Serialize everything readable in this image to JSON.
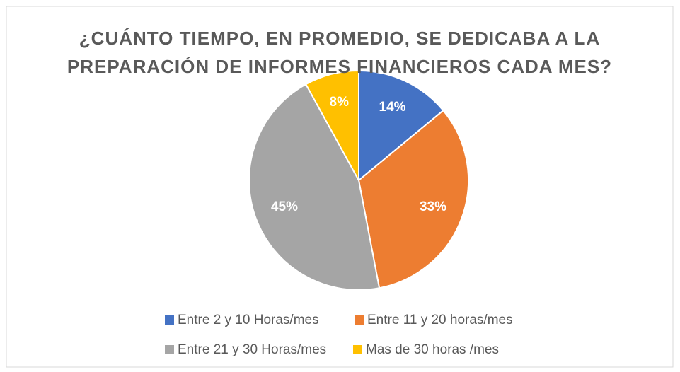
{
  "chart_data": {
    "type": "pie",
    "title": "¿CUÁNTO TIEMPO, EN PROMEDIO, SE DEDICABA A LA PREPARACIÓN DE INFORMES FINANCIEROS CADA MES?",
    "categories": [
      "Entre 2 y 10 Horas/mes",
      "Entre 11 y 20 horas/mes",
      "Entre 21 y 30 Horas/mes",
      "Mas de 30 horas /mes"
    ],
    "values": [
      14,
      33,
      45,
      8
    ],
    "value_labels": [
      "14%",
      "33%",
      "45%",
      "8%"
    ],
    "colors": [
      "#4472c4",
      "#ed7d31",
      "#a5a5a5",
      "#ffc000"
    ],
    "legend": "bottom"
  }
}
